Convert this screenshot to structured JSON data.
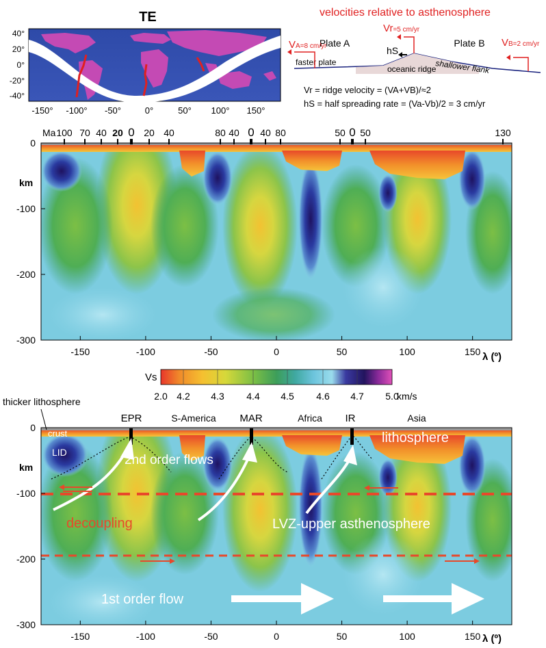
{
  "map_panel": {
    "title": "TE",
    "lat_ticks": [
      "40°",
      "20°",
      "0°",
      "-20°",
      "-40°"
    ],
    "lon_ticks": [
      "-150°",
      "-100°",
      "-50°",
      "0°",
      "50°",
      "100°",
      "150°"
    ]
  },
  "schematic": {
    "title": "velocities relative to asthenosphere",
    "vr_label": "Vr",
    "vr_sub": "=5 cm/yr",
    "va_label": "V",
    "va_sub": "A=8 cm/yr",
    "vb_label": "V",
    "vb_sub": "B=2 cm/yr",
    "plate_a": "Plate A",
    "plate_b": "Plate B",
    "hs": "hS",
    "faster_plate": "faster plate",
    "shallower_flank": "shallower flank",
    "oceanic_ridge": "oceanic ridge",
    "eq1": "Vr = ridge velocity = (VA+VB)/≈2",
    "eq2": "hS = half spreading rate = (Va-Vb)/2 = 3 cm/yr"
  },
  "top_section": {
    "age_unit": "Ma",
    "age_labels": [
      "100",
      "70",
      "40",
      "20",
      "0",
      "20",
      "40",
      "80",
      "40",
      "0",
      "40",
      "80",
      "50",
      "0",
      "50",
      "130"
    ],
    "ylabel": "km",
    "y_ticks": [
      "0",
      "-100",
      "-200",
      "-300"
    ],
    "x_ticks": [
      "-150",
      "-100",
      "-50",
      "0",
      "50",
      "100",
      "150"
    ],
    "x_axis_label": "λ (º)"
  },
  "colorbar": {
    "label": "Vs",
    "ticks": [
      "2.0",
      "4.2",
      "4.3",
      "4.4",
      "4.5",
      "4.6",
      "4.7",
      "5.0"
    ],
    "unit": "km/s",
    "colors": [
      "#e8362b",
      "#f08a2a",
      "#f5c030",
      "#d6d83a",
      "#9cc845",
      "#5ab04a",
      "#3da07a",
      "#4fb8c8",
      "#8cd4e8",
      "#6fa8dc",
      "#3a3aa0",
      "#2a1a70",
      "#8a2a9a",
      "#d03aa8"
    ]
  },
  "bottom_section": {
    "thicker_lithosphere": "thicker lithosphere",
    "crust": "crust",
    "lid": "LID",
    "ridges": [
      "EPR",
      "MAR",
      "IR"
    ],
    "regions": [
      "S-America",
      "Africa",
      "Asia"
    ],
    "lithosphere": "lithosphere",
    "second_order": "2nd order flows",
    "decoupling": "decoupling",
    "lvz": "LVZ-upper asthenosphere",
    "first_order": "1st order flow",
    "ylabel": "km",
    "y_ticks": [
      "0",
      "-100",
      "-200",
      "-300"
    ],
    "x_ticks": [
      "-150",
      "-100",
      "-50",
      "0",
      "50",
      "100",
      "150"
    ],
    "x_axis_label": "λ (º)"
  }
}
